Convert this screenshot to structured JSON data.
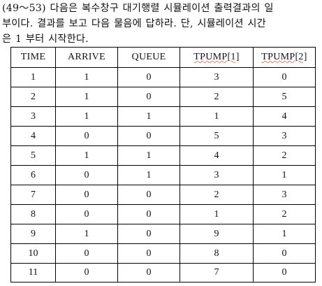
{
  "intro": {
    "lines": [
      "(49～53) 다음은 복수창구 대기행렬 시뮬레이션 출력결과의 일",
      "부이다. 결과를 보고 다음 물음에 답하라. 단, 시뮬레이션 시간",
      "은 1 부터 시작한다."
    ]
  },
  "table": {
    "headers": [
      "TIME",
      "ARRIVE",
      "QUEUE",
      "TPUMP[1]",
      "TPUMP[2]"
    ],
    "rows": [
      [
        "1",
        "1",
        "0",
        "3",
        "0"
      ],
      [
        "2",
        "1",
        "0",
        "2",
        "5"
      ],
      [
        "3",
        "1",
        "1",
        "1",
        "4"
      ],
      [
        "4",
        "0",
        "0",
        "5",
        "3"
      ],
      [
        "5",
        "1",
        "1",
        "4",
        "2"
      ],
      [
        "6",
        "0",
        "1",
        "3",
        "1"
      ],
      [
        "7",
        "0",
        "0",
        "2",
        "3"
      ],
      [
        "8",
        "0",
        "0",
        "1",
        "2"
      ],
      [
        "9",
        "1",
        "0",
        "9",
        "1"
      ],
      [
        "10",
        "0",
        "0",
        "8",
        "0"
      ],
      [
        "11",
        "0",
        "0",
        "7",
        "0"
      ]
    ]
  }
}
